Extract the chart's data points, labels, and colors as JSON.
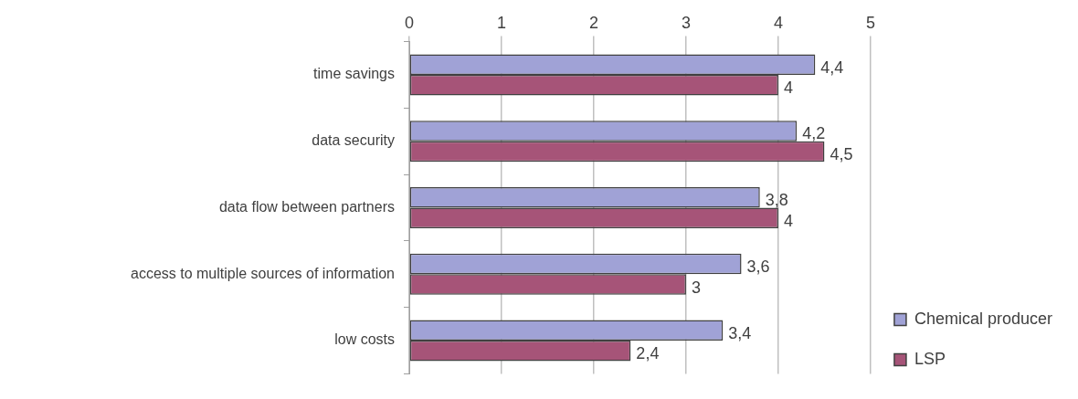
{
  "chart_data": {
    "type": "bar",
    "orientation": "horizontal",
    "categories": [
      "time savings",
      "data security",
      "data flow between partners",
      "access to multiple sources of information",
      "low costs"
    ],
    "series": [
      {
        "name": "Chemical producer",
        "color": "#a0a2d6",
        "values": [
          4.4,
          4.2,
          3.8,
          3.6,
          3.4
        ],
        "value_labels": [
          "4,4",
          "4,2",
          "3,8",
          "3,6",
          "3,4"
        ]
      },
      {
        "name": "LSP",
        "color": "#a65478",
        "values": [
          4,
          4.5,
          4,
          3,
          2.4
        ],
        "value_labels": [
          "4",
          "4,5",
          "4",
          "3",
          "2,4"
        ]
      }
    ],
    "xlim": [
      0,
      5
    ],
    "xticks": [
      0,
      1,
      2,
      3,
      4,
      5
    ],
    "grid": "x",
    "legend": "bottom right"
  }
}
